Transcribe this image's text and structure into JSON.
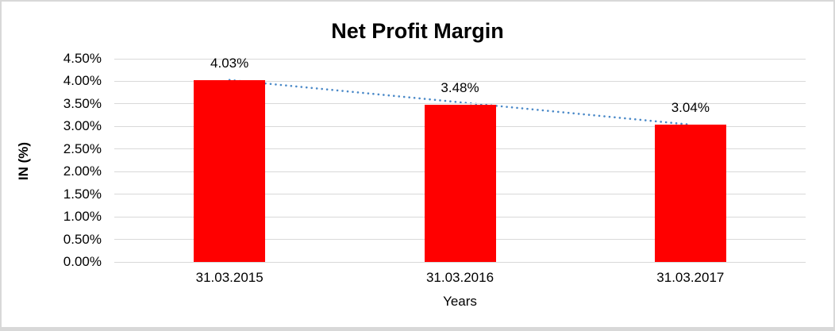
{
  "chart_data": {
    "type": "bar",
    "title": "Net Profit Margin",
    "categories": [
      "31.03.2015",
      "31.03.2016",
      "31.03.2017"
    ],
    "values": [
      4.03,
      3.48,
      3.04
    ],
    "data_labels": [
      "4.03%",
      "3.48%",
      "3.04%"
    ],
    "xlabel": "Years",
    "ylabel": "IN (%)",
    "ylim": [
      0,
      4.5
    ],
    "ytick_step": 0.5,
    "ytick_labels": [
      "0.00%",
      "0.50%",
      "1.00%",
      "1.50%",
      "2.00%",
      "2.50%",
      "3.00%",
      "3.50%",
      "4.00%",
      "4.50%"
    ],
    "grid": true,
    "legend": false,
    "trendline": {
      "type": "linear",
      "style": "dotted",
      "from_value": 4.03,
      "to_value": 3.04
    },
    "colors": {
      "bar": "#ff0000",
      "trendline": "#4a89c8",
      "gridline": "#d9d9d9",
      "text": "#000000",
      "frame_border": "#d8d8d8",
      "background": "#ffffff"
    }
  }
}
